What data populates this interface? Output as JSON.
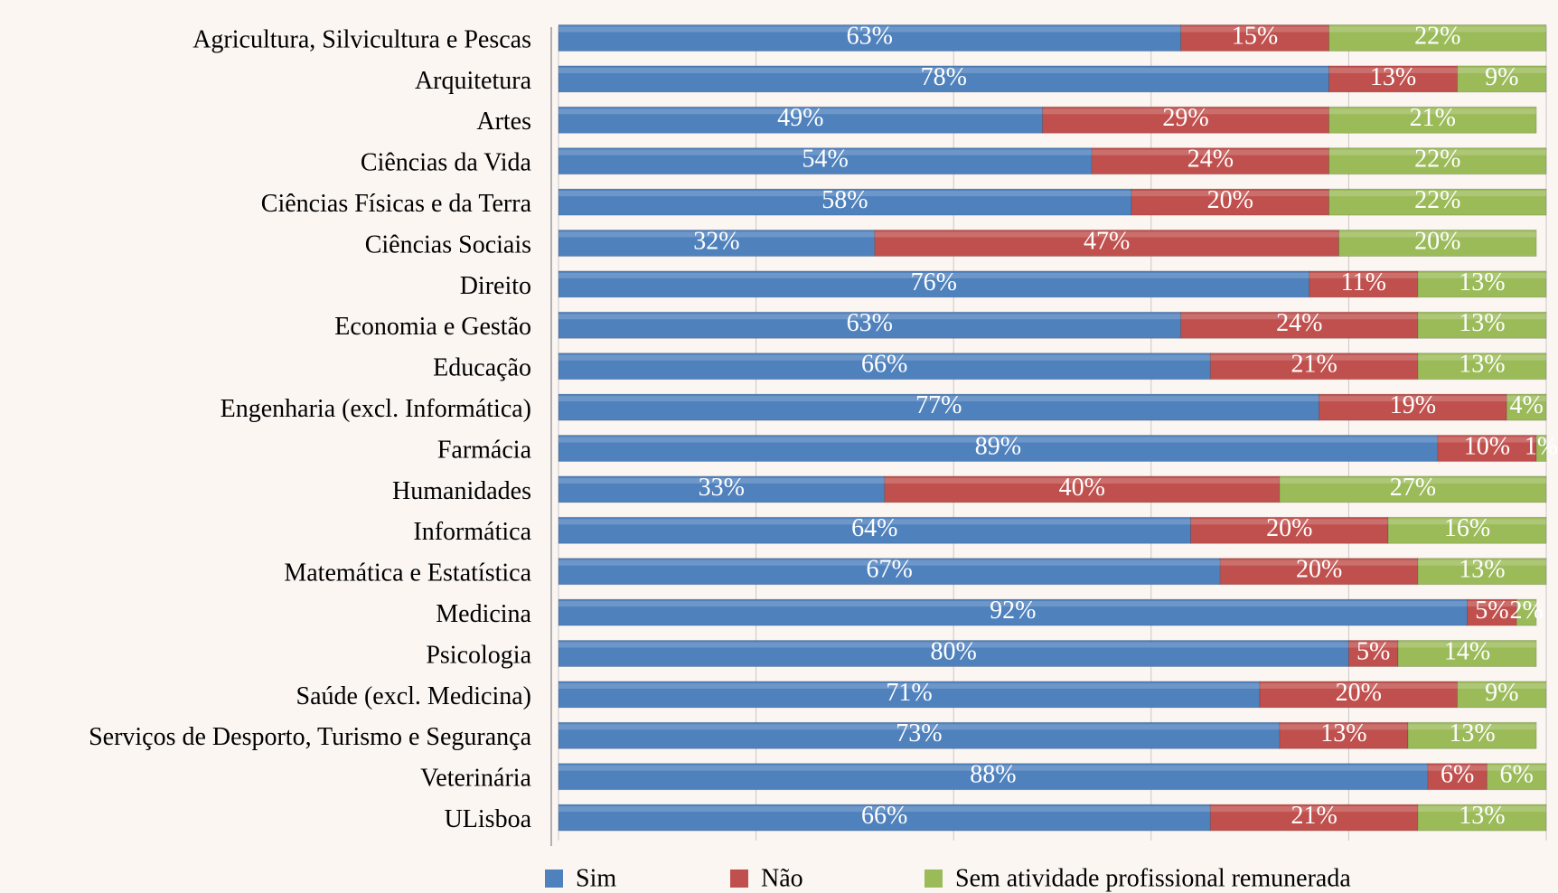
{
  "chart_data": {
    "type": "stacked-bar-horizontal",
    "categories": [
      "Agricultura, Silvicultura e Pescas",
      "Arquitetura",
      "Artes",
      "Ciências da Vida",
      "Ciências Físicas e da Terra",
      "Ciências Sociais",
      "Direito",
      "Economia e Gestão",
      "Educação",
      "Engenharia (excl. Informática)",
      "Farmácia",
      "Humanidades",
      "Informática",
      "Matemática e Estatística",
      "Medicina",
      "Psicologia",
      "Saúde (excl. Medicina)",
      "Serviços de Desporto, Turismo e Segurança",
      "Veterinária",
      "ULisboa"
    ],
    "series": [
      {
        "name": "Sim",
        "color": "#4f81bd",
        "values": [
          63,
          78,
          49,
          54,
          58,
          32,
          76,
          63,
          66,
          77,
          89,
          33,
          64,
          67,
          92,
          80,
          71,
          73,
          88,
          66
        ],
        "value_labels": [
          "63%",
          "78%",
          "49%",
          "54%",
          "58%",
          "32%",
          "76%",
          "63%",
          "66%",
          "77%",
          "89%",
          "33%",
          "64%",
          "67%",
          "92%",
          "80%",
          "71%",
          "73%",
          "88%",
          "66%"
        ]
      },
      {
        "name": "Não",
        "color": "#c0504d",
        "values": [
          15,
          13,
          29,
          24,
          20,
          47,
          11,
          24,
          21,
          19,
          10,
          40,
          20,
          20,
          5,
          5,
          20,
          13,
          6,
          21
        ],
        "value_labels": [
          "15%",
          "13%",
          "29%",
          "24%",
          "20%",
          "47%",
          "11%",
          "24%",
          "21%",
          "19%",
          "10%",
          "40%",
          "20%",
          "20%",
          "5%",
          "5%",
          "20%",
          "13%",
          "6%",
          "21%"
        ]
      },
      {
        "name": "Sem atividade profissional remunerada",
        "color": "#9bbb59",
        "values": [
          22,
          9,
          21,
          22,
          22,
          20,
          13,
          13,
          13,
          4,
          1,
          27,
          16,
          13,
          2,
          14,
          9,
          13,
          6,
          13
        ],
        "value_labels": [
          "22%",
          "9%",
          "21%",
          "22%",
          "22%",
          "20%",
          "13%",
          "13%",
          "13%",
          "4%",
          "1%",
          "27%",
          "16%",
          "13%",
          "2%",
          "14%",
          "9%",
          "13%",
          "6%",
          "13%"
        ]
      }
    ],
    "xlim": [
      0,
      100
    ],
    "xticks": [
      0,
      20,
      40,
      60,
      80,
      100
    ],
    "grid": true
  }
}
